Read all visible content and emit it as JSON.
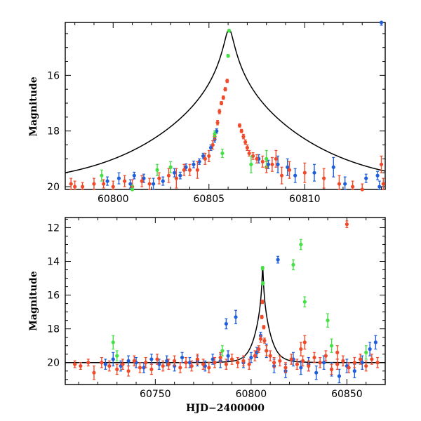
{
  "colors": {
    "blue": "#1f5fdc",
    "red": "#f04a2a",
    "green": "#44e044",
    "model": "#000000"
  },
  "chart_data": [
    {
      "type": "scatter",
      "panel": "top",
      "title": "",
      "xlabel": "",
      "ylabel": "Magnitude",
      "xlim": [
        60797.5,
        60814.2
      ],
      "ylim": [
        20.1,
        14.1
      ],
      "y_inverted": true,
      "xticks": [
        60800,
        60805,
        60810
      ],
      "yticks": [
        16,
        18,
        20
      ],
      "model_curve": {
        "peak_x": 60806.05,
        "peak_mag": 14.35,
        "baseline_mag": 20.0,
        "tE_days": 4.3,
        "u0": 0.05
      },
      "series": [
        {
          "color": "blue",
          "points": [
            [
              60799.7,
              19.8,
              0.15
            ],
            [
              60800.3,
              19.7,
              0.2
            ],
            [
              60800.9,
              19.9,
              0.15
            ],
            [
              60801.1,
              19.6,
              0.12
            ],
            [
              60801.6,
              19.7,
              0.15
            ],
            [
              60802.1,
              19.9,
              0.2
            ],
            [
              60802.6,
              19.8,
              0.15
            ],
            [
              60803.2,
              19.5,
              0.15
            ],
            [
              60803.5,
              19.6,
              0.12
            ],
            [
              60803.8,
              19.3,
              0.12
            ],
            [
              60804.2,
              19.2,
              0.12
            ],
            [
              60804.5,
              19.1,
              0.1
            ],
            [
              60804.7,
              18.9,
              0.1
            ],
            [
              60805.1,
              18.6,
              0.1
            ],
            [
              60805.3,
              18.3,
              0.1
            ],
            [
              60805.4,
              18.0,
              0.08
            ],
            [
              60807.6,
              19.0,
              0.15
            ],
            [
              60808.1,
              19.2,
              0.15
            ],
            [
              60808.6,
              19.2,
              0.3
            ],
            [
              60809.1,
              19.3,
              0.3
            ],
            [
              60809.5,
              19.6,
              0.25
            ],
            [
              60810.5,
              19.5,
              0.3
            ],
            [
              60811.5,
              19.3,
              0.35
            ],
            [
              60812.1,
              19.9,
              0.25
            ],
            [
              60813.2,
              19.7,
              0.15
            ],
            [
              60813.8,
              19.6,
              0.15
            ],
            [
              60813.9,
              20.0,
              0.2
            ],
            [
              60814.0,
              14.1,
              0.1
            ]
          ]
        },
        {
          "color": "red",
          "points": [
            [
              60797.8,
              19.9,
              0.2
            ],
            [
              60798.0,
              20.0,
              0.2
            ],
            [
              60798.4,
              20.0,
              0.15
            ],
            [
              60799.0,
              19.9,
              0.2
            ],
            [
              60799.5,
              19.9,
              0.15
            ],
            [
              60800.0,
              20.0,
              0.2
            ],
            [
              60800.6,
              19.8,
              0.2
            ],
            [
              60801.0,
              20.0,
              0.25
            ],
            [
              60801.5,
              19.8,
              0.2
            ],
            [
              60801.9,
              19.9,
              0.2
            ],
            [
              60802.4,
              19.7,
              0.2
            ],
            [
              60802.9,
              19.6,
              0.25
            ],
            [
              60803.3,
              19.7,
              0.35
            ],
            [
              60803.7,
              19.4,
              0.2
            ],
            [
              60804.0,
              19.4,
              0.2
            ],
            [
              60804.4,
              19.4,
              0.3
            ],
            [
              60804.8,
              19.0,
              0.2
            ],
            [
              60805.0,
              18.9,
              0.2
            ],
            [
              60805.2,
              18.5,
              0.15
            ],
            [
              60805.3,
              18.2,
              0.1
            ],
            [
              60805.45,
              17.7,
              0.08
            ],
            [
              60805.55,
              17.3,
              0.08
            ],
            [
              60805.65,
              17.0,
              0.06
            ],
            [
              60805.75,
              16.8,
              0.06
            ],
            [
              60805.85,
              16.5,
              0.06
            ],
            [
              60805.95,
              16.2,
              0.06
            ],
            [
              60806.6,
              17.8,
              0.06
            ],
            [
              60806.7,
              18.0,
              0.06
            ],
            [
              60806.8,
              18.2,
              0.08
            ],
            [
              60806.9,
              18.4,
              0.08
            ],
            [
              60807.0,
              18.6,
              0.1
            ],
            [
              60807.1,
              18.8,
              0.1
            ],
            [
              60807.3,
              18.9,
              0.12
            ],
            [
              60807.5,
              19.0,
              0.15
            ],
            [
              60807.8,
              19.1,
              0.2
            ],
            [
              60808.0,
              19.3,
              0.2
            ],
            [
              60808.3,
              19.2,
              0.25
            ],
            [
              60808.5,
              19.0,
              0.3
            ],
            [
              60808.8,
              19.6,
              0.3
            ],
            [
              60809.2,
              19.4,
              0.3
            ],
            [
              60810.0,
              19.5,
              0.35
            ],
            [
              60811.0,
              19.7,
              0.35
            ],
            [
              60811.8,
              19.9,
              0.3
            ],
            [
              60812.5,
              20.0,
              0.2
            ],
            [
              60813.0,
              20.1,
              0.2
            ],
            [
              60814.0,
              19.2,
              0.3
            ],
            [
              60814.1,
              19.9,
              0.2
            ]
          ]
        },
        {
          "color": "green",
          "points": [
            [
              60799.4,
              19.6,
              0.2
            ],
            [
              60801.0,
              20.1,
              0.15
            ],
            [
              60802.3,
              19.4,
              0.2
            ],
            [
              60803.0,
              19.3,
              0.2
            ],
            [
              60805.3,
              18.1,
              0.1
            ],
            [
              60805.7,
              18.8,
              0.15
            ],
            [
              60806.05,
              14.4,
              0.05
            ],
            [
              60806.0,
              15.3,
              0.05
            ],
            [
              60807.2,
              19.2,
              0.3
            ],
            [
              60808.0,
              19.0,
              0.3
            ]
          ]
        }
      ]
    },
    {
      "type": "scatter",
      "panel": "bottom",
      "title": "",
      "xlabel": "HJD−2400000",
      "ylabel": "Magnitude",
      "xlim": [
        60703,
        60870
      ],
      "ylim": [
        21.3,
        11.4
      ],
      "y_inverted": true,
      "xticks": [
        60750,
        60800,
        60850
      ],
      "yticks": [
        12,
        14,
        16,
        18,
        20
      ],
      "model_curve": {
        "peak_x": 60806.05,
        "peak_mag": 14.35,
        "baseline_mag": 20.0,
        "tE_days": 4.3,
        "u0": 0.05
      },
      "series": [
        {
          "color": "blue",
          "points": [
            [
              60724,
              20.1,
              0.3
            ],
            [
              60728,
              19.8,
              0.4
            ],
            [
              60732,
              20.2,
              0.3
            ],
            [
              60736,
              19.9,
              0.3
            ],
            [
              60740,
              20.0,
              0.3
            ],
            [
              60744,
              20.3,
              0.3
            ],
            [
              60748,
              19.8,
              0.3
            ],
            [
              60752,
              20.1,
              0.3
            ],
            [
              60756,
              19.9,
              0.3
            ],
            [
              60760,
              20.2,
              0.3
            ],
            [
              60764,
              19.7,
              0.3
            ],
            [
              60768,
              20.0,
              0.3
            ],
            [
              60772,
              19.9,
              0.3
            ],
            [
              60776,
              20.2,
              0.3
            ],
            [
              60780,
              19.8,
              0.3
            ],
            [
              60784,
              19.9,
              0.4
            ],
            [
              60787,
              17.7,
              0.3
            ],
            [
              60788,
              19.6,
              0.3
            ],
            [
              60792,
              17.3,
              0.4
            ],
            [
              60796,
              20.0,
              0.3
            ],
            [
              60800,
              19.7,
              0.3
            ],
            [
              60803,
              19.4,
              0.3
            ],
            [
              60805,
              18.4,
              0.2
            ],
            [
              60808,
              19.3,
              0.4
            ],
            [
              60812,
              20.2,
              0.4
            ],
            [
              60814,
              13.9,
              0.2
            ],
            [
              60818,
              20.5,
              0.4
            ],
            [
              60822,
              19.8,
              0.4
            ],
            [
              60826,
              20.3,
              0.4
            ],
            [
              60830,
              20.1,
              0.4
            ],
            [
              60834,
              20.6,
              0.4
            ],
            [
              60838,
              20.0,
              0.4
            ],
            [
              60842,
              20.4,
              0.4
            ],
            [
              60846,
              20.8,
              0.4
            ],
            [
              60850,
              20.2,
              0.4
            ],
            [
              60854,
              20.5,
              0.4
            ],
            [
              60858,
              20.0,
              0.4
            ],
            [
              60862,
              19.2,
              0.4
            ],
            [
              60865,
              18.8,
              0.4
            ]
          ]
        },
        {
          "color": "red",
          "points": [
            [
              60708,
              20.1,
              0.2
            ],
            [
              60711,
              20.2,
              0.2
            ],
            [
              60715,
              20.0,
              0.2
            ],
            [
              60718,
              20.6,
              0.4
            ],
            [
              60722,
              20.0,
              0.3
            ],
            [
              60726,
              20.2,
              0.3
            ],
            [
              60730,
              20.4,
              0.3
            ],
            [
              60733,
              20.1,
              0.3
            ],
            [
              60736,
              20.5,
              0.3
            ],
            [
              60739,
              19.9,
              0.3
            ],
            [
              60742,
              20.3,
              0.3
            ],
            [
              60745,
              20.0,
              0.3
            ],
            [
              60748,
              20.4,
              0.3
            ],
            [
              60751,
              19.8,
              0.3
            ],
            [
              60754,
              20.2,
              0.3
            ],
            [
              60757,
              20.1,
              0.3
            ],
            [
              60760,
              19.9,
              0.3
            ],
            [
              60763,
              20.3,
              0.3
            ],
            [
              60766,
              20.0,
              0.3
            ],
            [
              60769,
              20.2,
              0.3
            ],
            [
              60772,
              19.8,
              0.3
            ],
            [
              60775,
              20.1,
              0.3
            ],
            [
              60778,
              20.3,
              0.3
            ],
            [
              60781,
              20.0,
              0.3
            ],
            [
              60784,
              19.7,
              0.3
            ],
            [
              60787,
              20.1,
              0.3
            ],
            [
              60790,
              19.8,
              0.3
            ],
            [
              60793,
              20.0,
              0.3
            ],
            [
              60796,
              19.9,
              0.3
            ],
            [
              60799,
              20.1,
              0.3
            ],
            [
              60802,
              19.6,
              0.3
            ],
            [
              60804,
              19.2,
              0.2
            ],
            [
              60805,
              18.6,
              0.2
            ],
            [
              60805.6,
              17.3,
              0.1
            ],
            [
              60805.9,
              16.4,
              0.1
            ],
            [
              60806.6,
              17.9,
              0.1
            ],
            [
              60807,
              18.7,
              0.15
            ],
            [
              60808,
              19.3,
              0.3
            ],
            [
              60810,
              19.6,
              0.3
            ],
            [
              60812,
              20.0,
              0.3
            ],
            [
              60815,
              19.9,
              0.3
            ],
            [
              60818,
              20.3,
              0.3
            ],
            [
              60821,
              19.8,
              0.3
            ],
            [
              60824,
              20.1,
              0.3
            ],
            [
              60827,
              19.9,
              0.3
            ],
            [
              60830,
              20.2,
              0.3
            ],
            [
              60833,
              19.7,
              0.3
            ],
            [
              60836,
              20.0,
              0.3
            ],
            [
              60839,
              19.6,
              0.3
            ],
            [
              60842,
              20.4,
              0.3
            ],
            [
              60845,
              20.1,
              0.3
            ],
            [
              60848,
              19.9,
              0.3
            ],
            [
              60851,
              20.3,
              0.3
            ],
            [
              60854,
              20.0,
              0.3
            ],
            [
              60857,
              19.8,
              0.3
            ],
            [
              60860,
              20.2,
              0.3
            ],
            [
              60863,
              19.8,
              0.3
            ],
            [
              60866,
              20.0,
              0.3
            ],
            [
              60828,
              18.8,
              0.4
            ],
            [
              60845,
              19.4,
              0.4
            ],
            [
              60826,
              19.2,
              0.4
            ],
            [
              60850,
              11.8,
              0.2
            ]
          ]
        },
        {
          "color": "green",
          "points": [
            [
              60728,
              18.8,
              0.4
            ],
            [
              60730,
              19.6,
              0.3
            ],
            [
              60785,
              19.3,
              0.3
            ],
            [
              60806,
              14.4,
              0.1
            ],
            [
              60806.2,
              15.3,
              0.1
            ],
            [
              60822,
              14.2,
              0.3
            ],
            [
              60826,
              13.0,
              0.3
            ],
            [
              60828,
              16.4,
              0.3
            ],
            [
              60840,
              17.5,
              0.4
            ],
            [
              60842,
              19.0,
              0.4
            ],
            [
              60860,
              19.4,
              0.4
            ]
          ]
        }
      ]
    }
  ]
}
